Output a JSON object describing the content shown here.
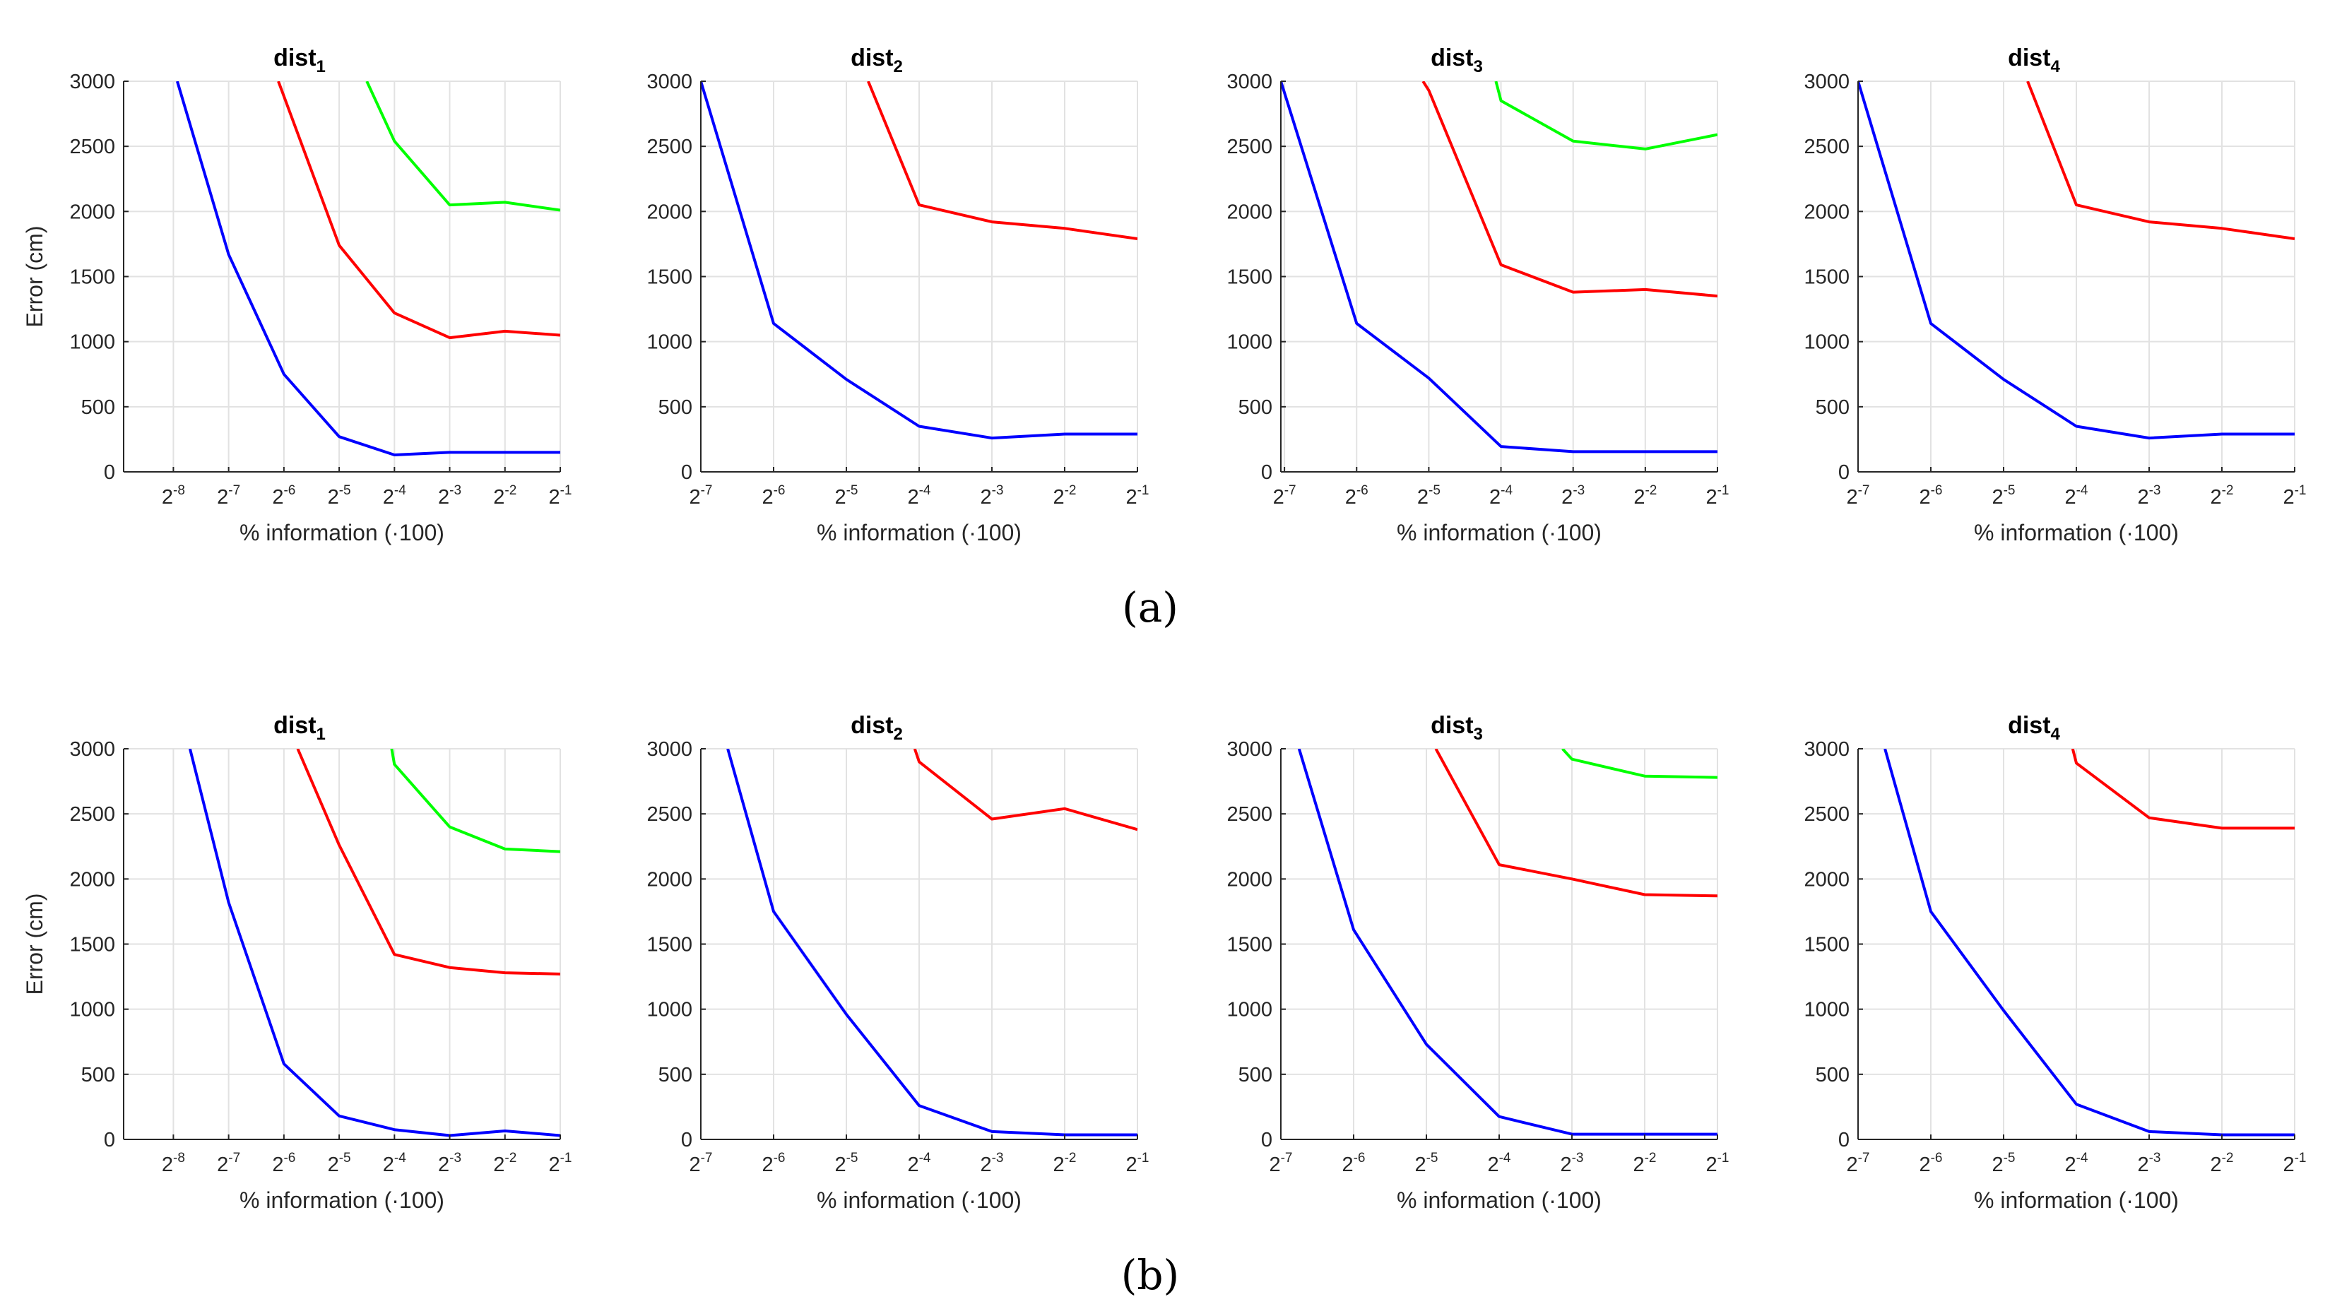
{
  "figure": {
    "panel_labels": [
      "(a)",
      "(b)"
    ]
  },
  "colors": {
    "blue": "#0000ff",
    "red": "#ff0000",
    "green": "#00ff00"
  },
  "chart_data": [
    {
      "type": "line",
      "panel": "a",
      "col": 0,
      "title": "dist",
      "title_sub": "1",
      "xlabel": "% information (·100)",
      "ylabel": "Error (cm)",
      "xlim": [
        -8.9,
        -1
      ],
      "ylim": [
        0,
        3000
      ],
      "x_ticks": [
        -8,
        -7,
        -6,
        -5,
        -4,
        -3,
        -2,
        -1
      ],
      "x_tick_labels": [
        "2^-8",
        "2^-7",
        "2^-6",
        "2^-5",
        "2^-4",
        "2^-3",
        "2^-2",
        "2^-1"
      ],
      "y_ticks": [
        0,
        500,
        1000,
        1500,
        2000,
        2500,
        3000
      ],
      "y_tick_labels": [
        "0",
        "500",
        "1000",
        "1500",
        "2000",
        "2500",
        "3000"
      ],
      "series": [
        {
          "color": "blue",
          "x": [
            -7.93,
            -7,
            -6,
            -5,
            -4,
            -3,
            -2,
            -1
          ],
          "y": [
            3000,
            1670,
            750,
            270,
            130,
            150,
            150,
            150
          ]
        },
        {
          "color": "red",
          "x": [
            -6.1,
            -5,
            -4,
            -3,
            -2,
            -1
          ],
          "y": [
            3000,
            1740,
            1220,
            1030,
            1080,
            1050
          ]
        },
        {
          "color": "green",
          "x": [
            -4.5,
            -4,
            -3,
            -2,
            -1
          ],
          "y": [
            3000,
            2540,
            2050,
            2070,
            2010
          ]
        }
      ]
    },
    {
      "type": "line",
      "panel": "a",
      "col": 1,
      "title": "dist",
      "title_sub": "2",
      "xlabel": "% information (·100)",
      "ylabel": "",
      "xlim": [
        -7,
        -1
      ],
      "ylim": [
        0,
        3000
      ],
      "x_ticks": [
        -7,
        -6,
        -5,
        -4,
        -3,
        -2,
        -1
      ],
      "x_tick_labels": [
        "2^-7",
        "2^-6",
        "2^-5",
        "2^-4",
        "2^-3",
        "2^-2",
        "2^-1"
      ],
      "y_ticks": [
        0,
        500,
        1000,
        1500,
        2000,
        2500,
        3000
      ],
      "y_tick_labels": [
        "0",
        "500",
        "1000",
        "1500",
        "2000",
        "2500",
        "3000"
      ],
      "series": [
        {
          "color": "blue",
          "x": [
            -7,
            -6,
            -5,
            -4,
            -3,
            -2,
            -1
          ],
          "y": [
            3000,
            1140,
            710,
            350,
            260,
            290,
            290
          ]
        },
        {
          "color": "red",
          "x": [
            -4.7,
            -4,
            -3,
            -2,
            -1
          ],
          "y": [
            3000,
            2050,
            1920,
            1870,
            1790
          ]
        }
      ]
    },
    {
      "type": "line",
      "panel": "a",
      "col": 2,
      "title": "dist",
      "title_sub": "3",
      "xlabel": "% information (·100)",
      "ylabel": "",
      "xlim": [
        -7.05,
        -1
      ],
      "ylim": [
        0,
        3000
      ],
      "x_ticks": [
        -7,
        -6,
        -5,
        -4,
        -3,
        -2,
        -1
      ],
      "x_tick_labels": [
        "2^-7",
        "2^-6",
        "2^-5",
        "2^-4",
        "2^-3",
        "2^-2",
        "2^-1"
      ],
      "y_ticks": [
        0,
        500,
        1000,
        1500,
        2000,
        2500,
        3000
      ],
      "y_tick_labels": [
        "0",
        "500",
        "1000",
        "1500",
        "2000",
        "2500",
        "3000"
      ],
      "series": [
        {
          "color": "blue",
          "x": [
            -7.05,
            -6,
            -5,
            -4,
            -3,
            -2,
            -1
          ],
          "y": [
            3000,
            1140,
            720,
            195,
            155,
            155,
            155
          ]
        },
        {
          "color": "red",
          "x": [
            -5.08,
            -5,
            -4,
            -3,
            -2,
            -1
          ],
          "y": [
            3000,
            2930,
            1590,
            1380,
            1400,
            1350
          ]
        },
        {
          "color": "green",
          "x": [
            -4.07,
            -4,
            -3,
            -2,
            -1
          ],
          "y": [
            3000,
            2850,
            2540,
            2480,
            2590
          ]
        }
      ]
    },
    {
      "type": "line",
      "panel": "a",
      "col": 3,
      "title": "dist",
      "title_sub": "4",
      "xlabel": "% information (·100)",
      "ylabel": "",
      "xlim": [
        -7,
        -1
      ],
      "ylim": [
        0,
        3000
      ],
      "x_ticks": [
        -7,
        -6,
        -5,
        -4,
        -3,
        -2,
        -1
      ],
      "x_tick_labels": [
        "2^-7",
        "2^-6",
        "2^-5",
        "2^-4",
        "2^-3",
        "2^-2",
        "2^-1"
      ],
      "y_ticks": [
        0,
        500,
        1000,
        1500,
        2000,
        2500,
        3000
      ],
      "y_tick_labels": [
        "0",
        "500",
        "1000",
        "1500",
        "2000",
        "2500",
        "3000"
      ],
      "series": [
        {
          "color": "blue",
          "x": [
            -7,
            -6,
            -5,
            -4,
            -3,
            -2,
            -1
          ],
          "y": [
            3000,
            1140,
            710,
            350,
            260,
            290,
            290
          ]
        },
        {
          "color": "red",
          "x": [
            -4.67,
            -4,
            -3,
            -2,
            -1
          ],
          "y": [
            3000,
            2050,
            1920,
            1870,
            1790
          ]
        }
      ]
    },
    {
      "type": "line",
      "panel": "b",
      "col": 0,
      "title": "dist",
      "title_sub": "1",
      "xlabel": "% information (·100)",
      "ylabel": "Error (cm)",
      "xlim": [
        -8.9,
        -1
      ],
      "ylim": [
        0,
        3000
      ],
      "x_ticks": [
        -8,
        -7,
        -6,
        -5,
        -4,
        -3,
        -2,
        -1
      ],
      "x_tick_labels": [
        "2^-8",
        "2^-7",
        "2^-6",
        "2^-5",
        "2^-4",
        "2^-3",
        "2^-2",
        "2^-1"
      ],
      "y_ticks": [
        0,
        500,
        1000,
        1500,
        2000,
        2500,
        3000
      ],
      "y_tick_labels": [
        "0",
        "500",
        "1000",
        "1500",
        "2000",
        "2500",
        "3000"
      ],
      "series": [
        {
          "color": "blue",
          "x": [
            -7.7,
            -7,
            -6,
            -5,
            -4,
            -3,
            -2,
            -1
          ],
          "y": [
            3000,
            1820,
            580,
            180,
            75,
            30,
            65,
            30
          ]
        },
        {
          "color": "red",
          "x": [
            -5.75,
            -5,
            -4,
            -3,
            -2,
            -1
          ],
          "y": [
            3000,
            2260,
            1420,
            1320,
            1280,
            1270
          ]
        },
        {
          "color": "green",
          "x": [
            -4.05,
            -4,
            -3,
            -2,
            -1
          ],
          "y": [
            3000,
            2880,
            2400,
            2230,
            2210
          ]
        }
      ]
    },
    {
      "type": "line",
      "panel": "b",
      "col": 1,
      "title": "dist",
      "title_sub": "2",
      "xlabel": "% information (·100)",
      "ylabel": "",
      "xlim": [
        -7,
        -1
      ],
      "ylim": [
        0,
        3000
      ],
      "x_ticks": [
        -7,
        -6,
        -5,
        -4,
        -3,
        -2,
        -1
      ],
      "x_tick_labels": [
        "2^-7",
        "2^-6",
        "2^-5",
        "2^-4",
        "2^-3",
        "2^-2",
        "2^-1"
      ],
      "y_ticks": [
        0,
        500,
        1000,
        1500,
        2000,
        2500,
        3000
      ],
      "y_tick_labels": [
        "0",
        "500",
        "1000",
        "1500",
        "2000",
        "2500",
        "3000"
      ],
      "series": [
        {
          "color": "blue",
          "x": [
            -6.63,
            -6,
            -5,
            -4,
            -3,
            -2,
            -1
          ],
          "y": [
            3000,
            1750,
            960,
            260,
            60,
            35,
            35
          ]
        },
        {
          "color": "red",
          "x": [
            -4.06,
            -4,
            -3,
            -2,
            -1
          ],
          "y": [
            3000,
            2900,
            2460,
            2540,
            2380
          ]
        }
      ]
    },
    {
      "type": "line",
      "panel": "b",
      "col": 2,
      "title": "dist",
      "title_sub": "3",
      "xlabel": "% information (·100)",
      "ylabel": "",
      "xlim": [
        -7,
        -1
      ],
      "ylim": [
        0,
        3000
      ],
      "x_ticks": [
        -7,
        -6,
        -5,
        -4,
        -3,
        -2,
        -1
      ],
      "x_tick_labels": [
        "2^-7",
        "2^-6",
        "2^-5",
        "2^-4",
        "2^-3",
        "2^-2",
        "2^-1"
      ],
      "y_ticks": [
        0,
        500,
        1000,
        1500,
        2000,
        2500,
        3000
      ],
      "y_tick_labels": [
        "0",
        "500",
        "1000",
        "1500",
        "2000",
        "2500",
        "3000"
      ],
      "series": [
        {
          "color": "blue",
          "x": [
            -6.75,
            -6,
            -5,
            -4,
            -3,
            -2,
            -1
          ],
          "y": [
            3000,
            1610,
            730,
            175,
            40,
            40,
            40
          ]
        },
        {
          "color": "red",
          "x": [
            -4.87,
            -4,
            -3,
            -2,
            -1
          ],
          "y": [
            3000,
            2110,
            2000,
            1880,
            1870
          ]
        },
        {
          "color": "green",
          "x": [
            -3.13,
            -3,
            -2,
            -1
          ],
          "y": [
            3000,
            2920,
            2790,
            2780
          ]
        }
      ]
    },
    {
      "type": "line",
      "panel": "b",
      "col": 3,
      "title": "dist",
      "title_sub": "4",
      "xlabel": "% information (·100)",
      "ylabel": "",
      "xlim": [
        -7,
        -1
      ],
      "ylim": [
        0,
        3000
      ],
      "x_ticks": [
        -7,
        -6,
        -5,
        -4,
        -3,
        -2,
        -1
      ],
      "x_tick_labels": [
        "2^-7",
        "2^-6",
        "2^-5",
        "2^-4",
        "2^-3",
        "2^-2",
        "2^-1"
      ],
      "y_ticks": [
        0,
        500,
        1000,
        1500,
        2000,
        2500,
        3000
      ],
      "y_tick_labels": [
        "0",
        "500",
        "1000",
        "1500",
        "2000",
        "2500",
        "3000"
      ],
      "series": [
        {
          "color": "blue",
          "x": [
            -6.63,
            -6,
            -5,
            -4,
            -3,
            -2,
            -1
          ],
          "y": [
            3000,
            1750,
            990,
            270,
            60,
            35,
            35
          ]
        },
        {
          "color": "red",
          "x": [
            -4.05,
            -4,
            -3,
            -2,
            -1
          ],
          "y": [
            3000,
            2890,
            2470,
            2390,
            2390
          ]
        }
      ]
    }
  ]
}
